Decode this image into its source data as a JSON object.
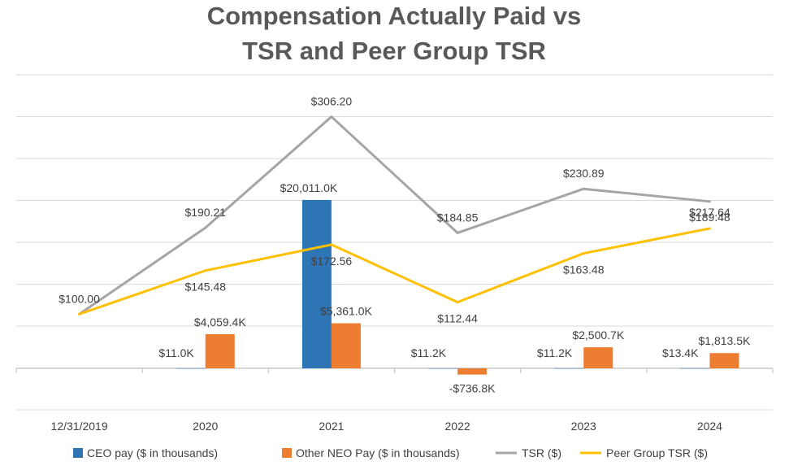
{
  "chart_data": {
    "type": "bar+line",
    "title_lines": [
      "Compensation Actually Paid vs",
      "TSR and Peer Group TSR"
    ],
    "categories": [
      "12/31/2019",
      "2020",
      "2021",
      "2022",
      "2023",
      "2024"
    ],
    "bar_series": [
      {
        "name": "CEO pay ($ in thousands)",
        "color": "#2e75b6",
        "values": [
          null,
          11.0,
          20011.0,
          11.2,
          11.2,
          13.4
        ],
        "labels": [
          "",
          "$11.0K",
          "$20,011.0K",
          "$11.2K",
          "$11.2K",
          "$13.4K"
        ]
      },
      {
        "name": "Other NEO Pay ($ in thousands)",
        "color": "#ed7d31",
        "values": [
          null,
          4059.4,
          5361.0,
          -736.8,
          2500.7,
          1813.5
        ],
        "labels": [
          "",
          "$4,059.4K",
          "$5,361.0K",
          "-$736.8K",
          "$2,500.7K",
          "$1,813.5K"
        ]
      }
    ],
    "line_series": [
      {
        "name": "TSR ($)",
        "color": "#a5a5a5",
        "values": [
          100.0,
          190.21,
          306.2,
          184.85,
          230.89,
          217.64
        ],
        "labels": [
          "$100.00",
          "$190.21",
          "$306.20",
          "$184.85",
          "$230.89",
          "$217.64"
        ]
      },
      {
        "name": "Peer Group TSR ($)",
        "color": "#ffc000",
        "values": [
          100.0,
          145.48,
          172.56,
          112.44,
          163.48,
          189.48
        ],
        "labels": [
          "",
          "$145.48",
          "$172.56",
          "$112.44",
          "$163.48",
          "$189.48"
        ]
      }
    ],
    "bar_axis_range": [
      -5000,
      20000
    ],
    "line_axis_range": [
      0,
      350
    ],
    "gridlines": true,
    "legend_position": "bottom"
  }
}
